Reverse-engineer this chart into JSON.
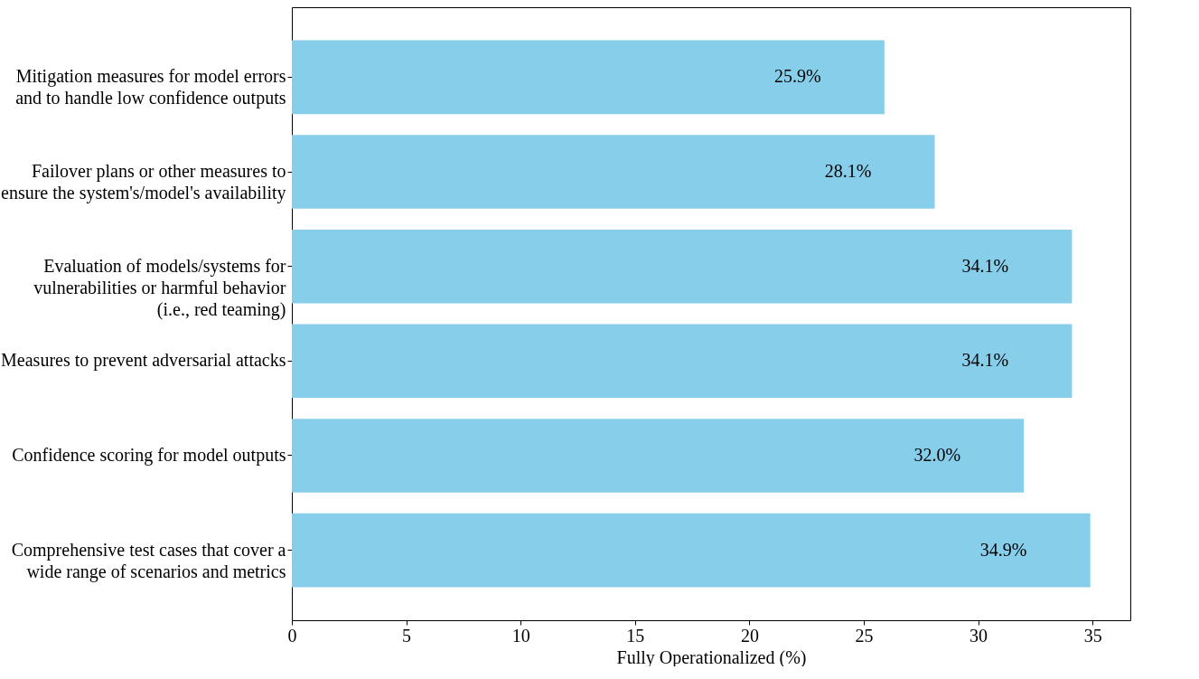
{
  "chart_data": {
    "type": "bar",
    "orientation": "horizontal",
    "xlabel": "Fully Operationalized (%)",
    "categories": [
      "Mitigation measures for model errors\nand to handle low confidence outputs",
      "Failover plans or other measures to\nensure the system's/model's availability",
      "Evaluation of models/systems for\nvulnerabilities or harmful behavior\n(i.e., red teaming)",
      "Measures to prevent adversarial attacks",
      "Confidence scoring for model outputs",
      "Comprehensive test cases that cover a\nwide range of scenarios and metrics"
    ],
    "values": [
      25.9,
      28.1,
      34.1,
      34.1,
      32.0,
      34.9
    ],
    "value_labels": [
      "25.9%",
      "28.1%",
      "34.1%",
      "34.1%",
      "32.0%",
      "34.9%"
    ],
    "color": "#87ceeb",
    "xlim": [
      0,
      36.65
    ],
    "xticks": [
      0,
      5,
      10,
      15,
      20,
      25,
      30,
      35
    ],
    "grid": false
  }
}
